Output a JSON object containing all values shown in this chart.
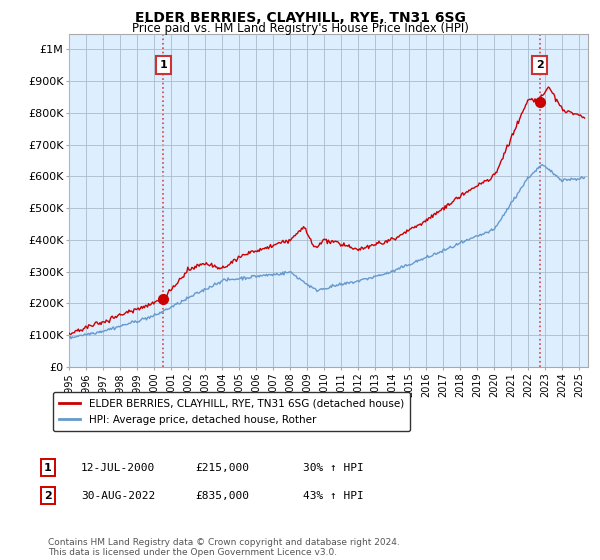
{
  "title": "ELDER BERRIES, CLAYHILL, RYE, TN31 6SG",
  "subtitle": "Price paid vs. HM Land Registry's House Price Index (HPI)",
  "ylabel_vals": [
    "£0",
    "£100K",
    "£200K",
    "£300K",
    "£400K",
    "£500K",
    "£600K",
    "£700K",
    "£800K",
    "£900K",
    "£1M"
  ],
  "ylim": [
    0,
    1050000
  ],
  "yticks": [
    0,
    100000,
    200000,
    300000,
    400000,
    500000,
    600000,
    700000,
    800000,
    900000,
    1000000
  ],
  "xlim_start": 1995.0,
  "xlim_end": 2025.5,
  "sale1_x": 2000.54,
  "sale1_y": 215000,
  "sale2_x": 2022.66,
  "sale2_y": 835000,
  "legend_line1": "ELDER BERRIES, CLAYHILL, RYE, TN31 6SG (detached house)",
  "legend_line2": "HPI: Average price, detached house, Rother",
  "footer": "Contains HM Land Registry data © Crown copyright and database right 2024.\nThis data is licensed under the Open Government Licence v3.0.",
  "red_color": "#cc0000",
  "blue_color": "#6699cc",
  "dashed_color": "#cc3333",
  "background_color": "#ffffff",
  "chart_bg_color": "#ddeeff",
  "grid_color": "#aabbcc"
}
